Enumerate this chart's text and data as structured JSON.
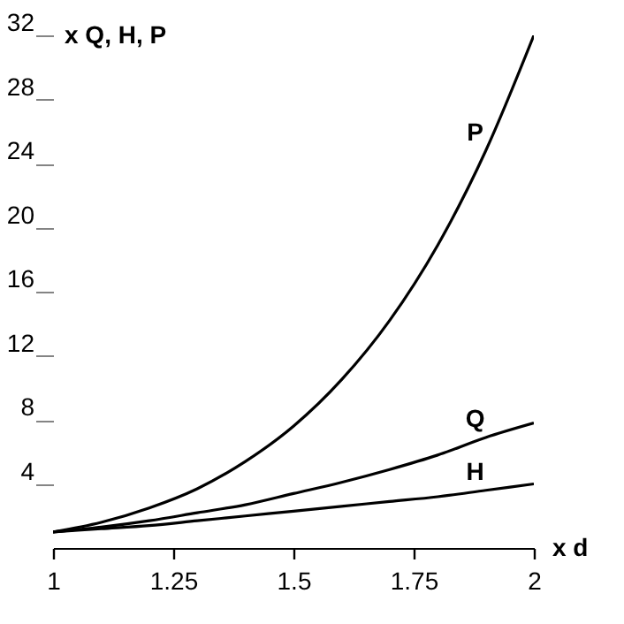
{
  "chart_data": {
    "type": "line",
    "xlabel": "x d",
    "ylabel": "x Q, H, P",
    "x": [
      1,
      1.1,
      1.2,
      1.3,
      1.4,
      1.5,
      1.6,
      1.7,
      1.8,
      1.9,
      2
    ],
    "series": [
      {
        "name": "P",
        "color": "#000000",
        "values": [
          1,
          1.6,
          2.5,
          3.7,
          5.4,
          7.6,
          10.5,
          14.2,
          18.9,
          24.8,
          32
        ]
      },
      {
        "name": "Q",
        "color": "#000000",
        "values": [
          1,
          1.3,
          1.7,
          2.2,
          2.7,
          3.4,
          4.1,
          4.9,
          5.8,
          6.9,
          7.8
        ]
      },
      {
        "name": "H",
        "color": "#000000",
        "values": [
          1,
          1.2,
          1.4,
          1.7,
          2,
          2.3,
          2.6,
          2.9,
          3.2,
          3.6,
          4
        ]
      }
    ],
    "xlim": [
      1,
      2
    ],
    "xticks": [
      1,
      1.25,
      1.5,
      1.75,
      2
    ],
    "ylim": [
      0,
      32
    ],
    "yticks": [
      4,
      8,
      12,
      16,
      20,
      24,
      28,
      32
    ],
    "grid": false
  }
}
